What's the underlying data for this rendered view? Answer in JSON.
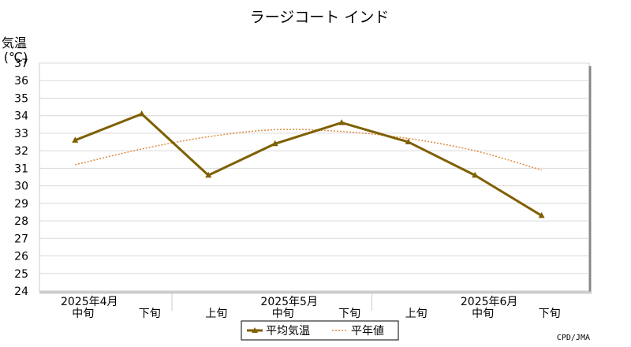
{
  "chart_data": {
    "type": "line",
    "title": "ラージコート インド",
    "ylabel": "気温",
    "ylabel_unit": "(℃)",
    "ylim": [
      24,
      37
    ],
    "yticks": [
      24,
      25,
      26,
      27,
      28,
      29,
      30,
      31,
      32,
      33,
      34,
      35,
      36,
      37
    ],
    "grid": true,
    "categories": [
      "中旬",
      "下旬",
      "上旬",
      "中旬",
      "下旬",
      "上旬",
      "中旬",
      "下旬"
    ],
    "month_labels": [
      {
        "label": "2025年4月",
        "category_index": 0
      },
      {
        "label": "2025年5月",
        "category_index": 3
      },
      {
        "label": "2025年6月",
        "category_index": 6
      }
    ],
    "series": [
      {
        "name": "平均気温",
        "color": "#7f6000",
        "style": "solid",
        "marker": "triangle",
        "values": [
          32.6,
          34.1,
          30.6,
          32.4,
          33.6,
          32.5,
          30.6,
          28.3
        ]
      },
      {
        "name": "平年値",
        "color": "#e08a3c",
        "style": "dotted",
        "marker": "none",
        "values": [
          31.2,
          32.1,
          32.8,
          33.2,
          33.1,
          32.7,
          32.0,
          30.9
        ]
      }
    ],
    "legend_position": "bottom-center",
    "credit": "CPD/JMA"
  }
}
